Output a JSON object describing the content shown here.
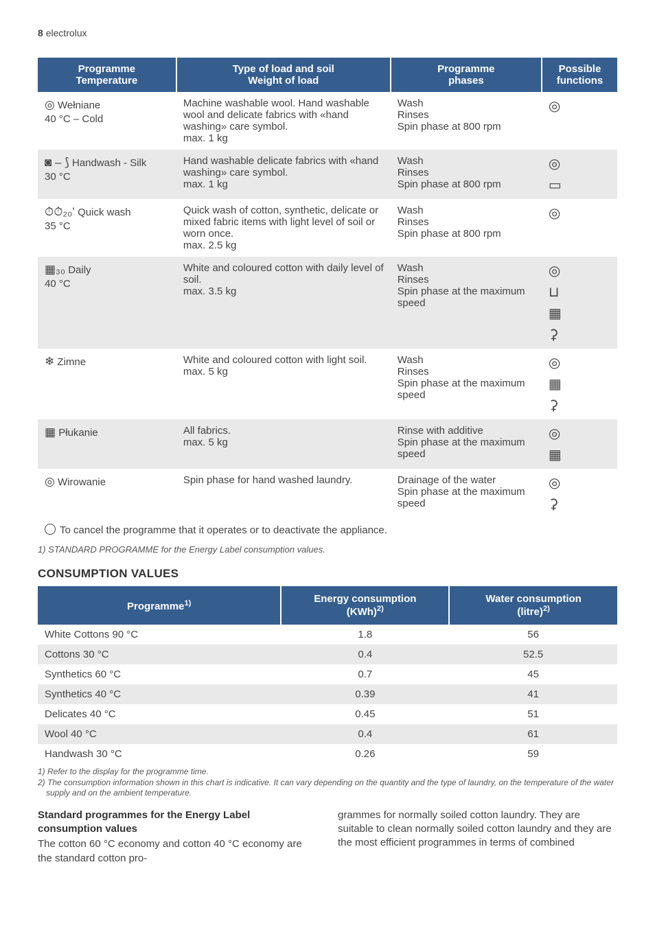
{
  "page_header": {
    "num": "8",
    "brand": "electrolux"
  },
  "main_table": {
    "headers": {
      "prog_l1": "Programme",
      "prog_l2": "Temperature",
      "type_l1": "Type of load and soil",
      "type_l2": "Weight of load",
      "phase_l1": "Programme",
      "phase_l2": "phases",
      "func_l1": "Possible",
      "func_l2": "functions"
    },
    "rows": [
      {
        "prog_icon": "◎",
        "prog_name": "Wełniane",
        "prog_temp": "40 °C – Cold",
        "type": "Machine washable wool. Hand washable wool and delicate fabrics with «hand washing» care symbol.\nmax. 1 kg",
        "phases": "Wash\nRinses\nSpin phase at 800 rpm",
        "funcs": [
          "◎"
        ]
      },
      {
        "prog_icon": "◙ – ⟆",
        "prog_name": "Handwash - Silk",
        "prog_temp": "30 °C",
        "type": "Hand washable delicate fabrics with «hand washing» care symbol.\nmax. 1 kg",
        "phases": "Wash\nRinses\nSpin phase at 800 rpm",
        "funcs": [
          "◎",
          "▭"
        ]
      },
      {
        "prog_icon": "⏱⏱₂₀’",
        "prog_name": "Quick wash",
        "prog_temp": "35 °C",
        "type": "Quick wash of cotton, synthetic, delicate or mixed fabric items with light level of soil or worn once.\nmax. 2.5 kg",
        "phases": "Wash\nRinses\nSpin phase at 800 rpm",
        "funcs": [
          "◎"
        ]
      },
      {
        "prog_icon": "▦₃₀",
        "prog_name": "Daily",
        "prog_temp": "40 °C",
        "type": "White and coloured cotton with daily level of soil.\nmax. 3.5 kg",
        "phases": "Wash\nRinses\nSpin phase at the maximum speed",
        "funcs": [
          "◎",
          "⊔",
          "▦",
          "⚳"
        ]
      },
      {
        "prog_icon": "❄",
        "prog_name": "Zimne",
        "prog_temp": "",
        "type": "White and coloured cotton with light soil.\nmax. 5 kg",
        "phases": "Wash\nRinses\nSpin phase at the maximum speed",
        "funcs": [
          "◎",
          "▦",
          "⚳"
        ]
      },
      {
        "prog_icon": "▦",
        "prog_name": "Płukanie",
        "prog_temp": "",
        "type": "All fabrics.\nmax. 5 kg",
        "phases": "Rinse with additive\nSpin phase at the maximum speed",
        "funcs": [
          "◎",
          "▦"
        ]
      },
      {
        "prog_icon": "◎",
        "prog_name": "Wirowanie",
        "prog_temp": "",
        "type": "Spin phase for hand washed laundry.",
        "phases": "Drainage of the water\nSpin phase at the maximum speed",
        "funcs": [
          "◎",
          "⚳"
        ]
      }
    ],
    "cancel_line": "To cancel the programme that it operates or to deactivate the appliance."
  },
  "footnote_main": "1) STANDARD PROGRAMME for the Energy Label consumption values.",
  "consumption_heading": "CONSUMPTION VALUES",
  "consume_table": {
    "headers": {
      "prog": "Programme",
      "prog_sup": "1)",
      "energy_l1": "Energy consumption",
      "energy_l2": "(KWh)",
      "energy_sup": "2)",
      "water_l1": "Water consumption",
      "water_l2": "(litre)",
      "water_sup": "2)"
    },
    "rows": [
      {
        "name": "White Cottons 90 °C",
        "energy": "1.8",
        "water": "56"
      },
      {
        "name": "Cottons 30 °C",
        "energy": "0.4",
        "water": "52.5"
      },
      {
        "name": "Synthetics 60 °C",
        "energy": "0.7",
        "water": "45"
      },
      {
        "name": "Synthetics 40 °C",
        "energy": "0.39",
        "water": "41"
      },
      {
        "name": "Delicates 40 °C",
        "energy": "0.45",
        "water": "51"
      },
      {
        "name": "Wool 40 °C",
        "energy": "0.4",
        "water": "61"
      },
      {
        "name": "Handwash 30 °C",
        "energy": "0.26",
        "water": "59"
      }
    ]
  },
  "footnotes_small": {
    "l1": "1) Refer to the display for the programme time.",
    "l2": "2) The consumption information shown in this chart is indicative. It can vary depending on the quantity and the type of laundry, on the temperature of the water supply and on the ambient temperature."
  },
  "bottom": {
    "heading": "Standard programmes for the Energy Label consumption values",
    "col1": "The cotton 60 °C economy and cotton 40 °C economy are the standard cotton pro-",
    "col2": "grammes for normally soiled cotton laundry. They are suitable to clean normally soiled cotton laundry and they are the most efficient programmes in terms of combined"
  }
}
